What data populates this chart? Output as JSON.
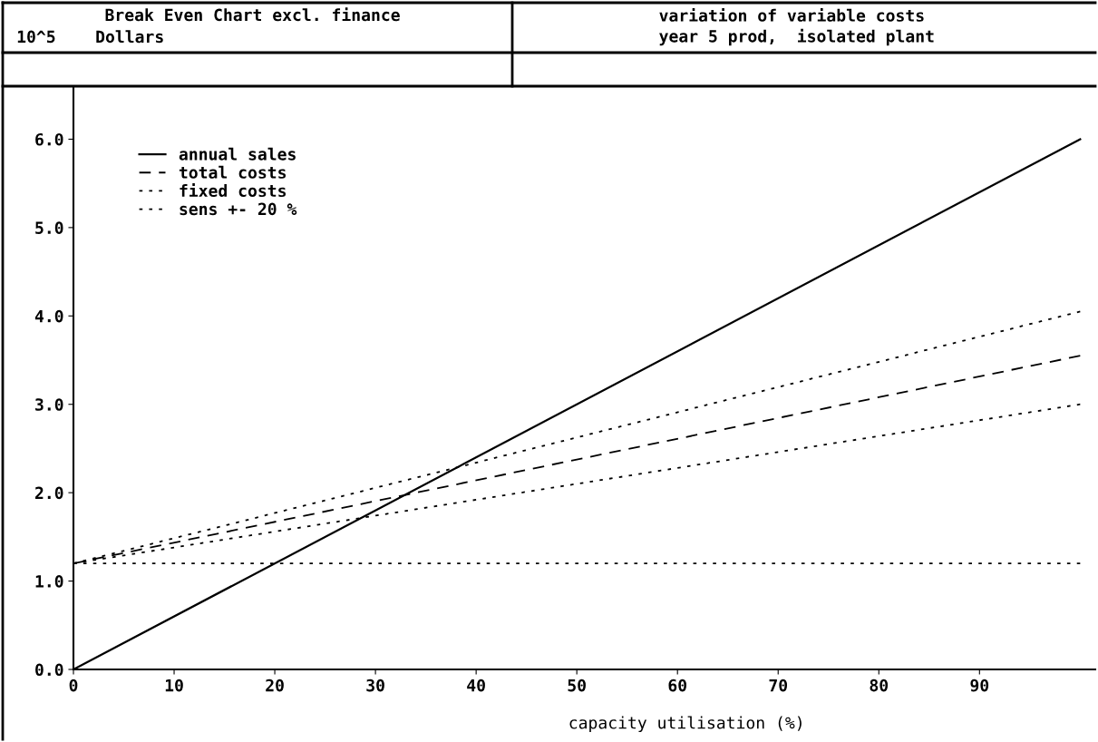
{
  "chart_data": {
    "type": "line",
    "title": "Break Even Chart excl. finance",
    "subtitle": "variation of variable costs\nyear 5 prod,  isolated plant",
    "ylabel": "10^5    Dollars",
    "xlabel": "capacity utilisation (%)",
    "x": [
      0,
      100
    ],
    "series": [
      {
        "name": "annual sales",
        "color": "#000000",
        "values": [
          0.0,
          6.0
        ],
        "line_style": "solid"
      },
      {
        "name": "total costs",
        "color": "#000000",
        "values": [
          1.2,
          3.55
        ],
        "line_style": "dashed"
      },
      {
        "name": "fixed costs",
        "color": "#000000",
        "values": [
          1.2,
          1.2
        ],
        "line_style": "dotted"
      },
      {
        "name": "sens +- 20 %",
        "color": "#000000",
        "values": [
          1.2,
          4.05
        ],
        "line_style": "dotted"
      },
      {
        "color": "#000000",
        "values": [
          1.2,
          3.0
        ],
        "line_style": "dotted"
      }
    ],
    "xlim": [
      0,
      101.5
    ],
    "xticks": [
      0,
      10,
      20,
      30,
      40,
      50,
      60,
      70,
      80,
      90
    ],
    "ylim": [
      0,
      6.6
    ],
    "yticks": [
      {
        "value": 0,
        "label": "0.0"
      },
      {
        "value": 1,
        "label": "1.0"
      },
      {
        "value": 2,
        "label": "2.0"
      },
      {
        "value": 3,
        "label": "3.0"
      },
      {
        "value": 4,
        "label": "4.0"
      },
      {
        "value": 5,
        "label": "5.0"
      },
      {
        "value": 6,
        "label": "6.0"
      }
    ],
    "grid": false,
    "legend": "top left"
  }
}
